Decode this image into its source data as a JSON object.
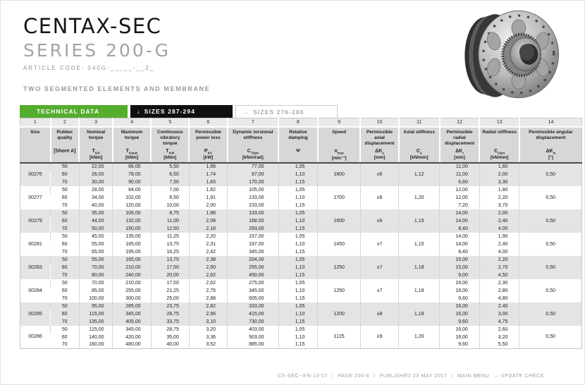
{
  "header": {
    "title": "CENTAX-SEC",
    "series": "SERIES 200-G",
    "article_code": "ARTICLE CODE: 040G-_____-__2_",
    "section_heading": "TWO SEGMENTED ELEMENTS AND MEMBRANE"
  },
  "tabs": {
    "technical": {
      "label": "TECHNICAL DATA",
      "icon": ""
    },
    "sizes_other": {
      "label": "SIZES 287-294",
      "icon": "↓"
    },
    "sizes_current": {
      "label": "SIZES 276-286",
      "icon": "→"
    }
  },
  "colors": {
    "accent_green": "#55ad2e",
    "tab_black": "#101010"
  },
  "table": {
    "columns": [
      {
        "num": "1",
        "label": "Size",
        "sym": "",
        "sub": "",
        "unit": ""
      },
      {
        "num": "2",
        "label": "Rubber quality",
        "sym": "[Shore A]",
        "sub": "",
        "unit": ""
      },
      {
        "num": "3",
        "label": "Nominal torque",
        "sym": "T",
        "sub": "KN",
        "unit": "[kNm]"
      },
      {
        "num": "4",
        "label": "Maximum torque",
        "sym": "T",
        "sub": "Kmax",
        "unit": "[kNm]"
      },
      {
        "num": "5",
        "label": "Continuous vibratory torque",
        "sym": "T",
        "sub": "KW",
        "unit": "[kNm]"
      },
      {
        "num": "6",
        "label": "Permissible power loss",
        "sym": "P",
        "sub": "KV",
        "unit": "[kW]"
      },
      {
        "num": "7",
        "label": "Dynamic torsional stiffness",
        "sym": "C",
        "sub": "Tdyn",
        "unit": "[kNm/rad]"
      },
      {
        "num": "8",
        "label": "Relative damping",
        "sym": "Ψ",
        "sub": "",
        "unit": ""
      },
      {
        "num": "9",
        "label": "Speed",
        "sym": "n",
        "sub": "max",
        "unit": "[min⁻¹]"
      },
      {
        "num": "10",
        "label": "Permissible axial displacement",
        "sym": "ΔK",
        "sub": "a",
        "unit": "[mm]"
      },
      {
        "num": "11",
        "label": "Axial stiffness",
        "sym": "C",
        "sub": "a",
        "unit": "[kN/mm]"
      },
      {
        "num": "12",
        "label": "Permissible radial displacement",
        "sym": "ΔK",
        "sub": "r",
        "unit": "[mm]"
      },
      {
        "num": "13",
        "label": "Radial stiffness",
        "sym": "C",
        "sub": "rdyn",
        "unit": "[kN/mm]"
      },
      {
        "num": "14",
        "label": "Permissible angular displacement",
        "sym": "ΔK",
        "sub": "w",
        "unit": "[°]"
      }
    ],
    "groups": [
      {
        "size": "00276",
        "shaded": true,
        "speed": "1800",
        "dka": "±6",
        "ca": "1,12",
        "dkw": "0,50",
        "rows": [
          {
            "shore": "50",
            "tkn": "22,00",
            "tkmax": "66,00",
            "tkw": "5,50",
            "pkv": "1,66",
            "ctdyn": "77,00",
            "psi": "1,05",
            "dkr": "11,00",
            "crdyn": "1,60"
          },
          {
            "shore": "60",
            "tkn": "26,00",
            "tkmax": "78,00",
            "tkw": "6,50",
            "pkv": "1,74",
            "ctdyn": "97,00",
            "psi": "1,10",
            "dkr": "11,00",
            "crdyn": "2,00"
          },
          {
            "shore": "70",
            "tkn": "30,00",
            "tkmax": "90,00",
            "tkw": "7,50",
            "pkv": "1,83",
            "ctdyn": "170,00",
            "psi": "1,15",
            "dkr": "6,60",
            "crdyn": "3,30"
          }
        ]
      },
      {
        "size": "00277",
        "shaded": false,
        "speed": "1700",
        "dka": "±6",
        "ca": "1,20",
        "dkw": "0,50",
        "rows": [
          {
            "shore": "50",
            "tkn": "28,00",
            "tkmax": "84,00",
            "tkw": "7,00",
            "pkv": "1,82",
            "ctdyn": "105,00",
            "psi": "1,05",
            "dkr": "12,00",
            "crdyn": "1,80"
          },
          {
            "shore": "60",
            "tkn": "34,00",
            "tkmax": "102,00",
            "tkw": "8,50",
            "pkv": "1,91",
            "ctdyn": "133,00",
            "psi": "1,10",
            "dkr": "12,00",
            "crdyn": "2,20"
          },
          {
            "shore": "70",
            "tkn": "40,00",
            "tkmax": "120,00",
            "tkw": "10,00",
            "pkv": "2,00",
            "ctdyn": "233,00",
            "psi": "1,15",
            "dkr": "7,20",
            "crdyn": "3,70"
          }
        ]
      },
      {
        "size": "00279",
        "shaded": true,
        "speed": "1600",
        "dka": "±6",
        "ca": "1,15",
        "dkw": "0,50",
        "rows": [
          {
            "shore": "50",
            "tkn": "35,00",
            "tkmax": "105,00",
            "tkw": "8,75",
            "pkv": "1,98",
            "ctdyn": "133,00",
            "psi": "1,05",
            "dkr": "14,00",
            "crdyn": "2,00"
          },
          {
            "shore": "60",
            "tkn": "44,00",
            "tkmax": "132,00",
            "tkw": "11,00",
            "pkv": "2,08",
            "ctdyn": "168,00",
            "psi": "1,10",
            "dkr": "14,00",
            "crdyn": "2,40"
          },
          {
            "shore": "70",
            "tkn": "50,00",
            "tkmax": "150,00",
            "tkw": "12,50",
            "pkv": "2,18",
            "ctdyn": "293,00",
            "psi": "1,15",
            "dkr": "8,40",
            "crdyn": "4,00"
          }
        ]
      },
      {
        "size": "00281",
        "shaded": false,
        "speed": "1450",
        "dka": "±7",
        "ca": "1,15",
        "dkw": "0,50",
        "rows": [
          {
            "shore": "50",
            "tkn": "45,00",
            "tkmax": "135,00",
            "tkw": "11,25",
            "pkv": "2,20",
            "ctdyn": "157,00",
            "psi": "1,05",
            "dkr": "14,00",
            "crdyn": "1,90"
          },
          {
            "shore": "60",
            "tkn": "55,00",
            "tkmax": "165,00",
            "tkw": "13,75",
            "pkv": "2,31",
            "ctdyn": "197,00",
            "psi": "1,10",
            "dkr": "14,00",
            "crdyn": "2,40"
          },
          {
            "shore": "70",
            "tkn": "65,00",
            "tkmax": "195,00",
            "tkw": "16,25",
            "pkv": "2,42",
            "ctdyn": "345,00",
            "psi": "1,15",
            "dkr": "8,40",
            "crdyn": "4,00"
          }
        ]
      },
      {
        "size": "00283",
        "shaded": true,
        "speed": "1250",
        "dka": "±7",
        "ca": "1,18",
        "dkw": "0,50",
        "rows": [
          {
            "shore": "50",
            "tkn": "55,00",
            "tkmax": "165,00",
            "tkw": "13,75",
            "pkv": "2,38",
            "ctdyn": "204,00",
            "psi": "1,05",
            "dkr": "15,00",
            "crdyn": "2,20"
          },
          {
            "shore": "60",
            "tkn": "70,00",
            "tkmax": "210,00",
            "tkw": "17,50",
            "pkv": "2,50",
            "ctdyn": "255,00",
            "psi": "1,10",
            "dkr": "15,00",
            "crdyn": "2,70"
          },
          {
            "shore": "70",
            "tkn": "80,00",
            "tkmax": "240,00",
            "tkw": "20,00",
            "pkv": "2,62",
            "ctdyn": "450,00",
            "psi": "1,15",
            "dkr": "9,00",
            "crdyn": "4,50"
          }
        ]
      },
      {
        "size": "00284",
        "shaded": false,
        "speed": "1250",
        "dka": "±7",
        "ca": "1,18",
        "dkw": "0,50",
        "rows": [
          {
            "shore": "50",
            "tkn": "70,00",
            "tkmax": "210,00",
            "tkw": "17,50",
            "pkv": "2,62",
            "ctdyn": "275,00",
            "psi": "1,05",
            "dkr": "16,00",
            "crdyn": "2,30"
          },
          {
            "shore": "60",
            "tkn": "85,00",
            "tkmax": "255,00",
            "tkw": "21,25",
            "pkv": "2,75",
            "ctdyn": "345,00",
            "psi": "1,10",
            "dkr": "16,00",
            "crdyn": "2,80"
          },
          {
            "shore": "70",
            "tkn": "100,00",
            "tkmax": "300,00",
            "tkw": "25,00",
            "pkv": "2,88",
            "ctdyn": "605,00",
            "psi": "1,15",
            "dkr": "9,60",
            "crdyn": "4,80"
          }
        ]
      },
      {
        "size": "00285",
        "shaded": true,
        "speed": "1200",
        "dka": "±8",
        "ca": "1,19",
        "dkw": "0,50",
        "rows": [
          {
            "shore": "50",
            "tkn": "95,00",
            "tkmax": "285,00",
            "tkw": "23,75",
            "pkv": "2,82",
            "ctdyn": "333,00",
            "psi": "1,05",
            "dkr": "16,00",
            "crdyn": "2,40"
          },
          {
            "shore": "60",
            "tkn": "115,00",
            "tkmax": "345,00",
            "tkw": "28,75",
            "pkv": "2,96",
            "ctdyn": "415,00",
            "psi": "1,10",
            "dkr": "16,00",
            "crdyn": "3,00"
          },
          {
            "shore": "70",
            "tkn": "135,00",
            "tkmax": "405,00",
            "tkw": "33,75",
            "pkv": "3,10",
            "ctdyn": "730,00",
            "psi": "1,15",
            "dkr": "9,60",
            "crdyn": "4,75"
          }
        ]
      },
      {
        "size": "00286",
        "shaded": false,
        "speed": "1125",
        "dka": "±9",
        "ca": "1,20",
        "dkw": "0,50",
        "rows": [
          {
            "shore": "50",
            "tkn": "115,00",
            "tkmax": "345,00",
            "tkw": "28,75",
            "pkv": "3,20",
            "ctdyn": "403,00",
            "psi": "1,05",
            "dkr": "16,00",
            "crdyn": "2,60"
          },
          {
            "shore": "60",
            "tkn": "140,00",
            "tkmax": "420,00",
            "tkw": "35,00",
            "pkv": "3,36",
            "ctdyn": "503,00",
            "psi": "1,10",
            "dkr": "16,00",
            "crdyn": "3,20"
          },
          {
            "shore": "70",
            "tkn": "160,00",
            "tkmax": "480,00",
            "tkw": "40,00",
            "pkv": "3,52",
            "ctdyn": "885,00",
            "psi": "1,15",
            "dkr": "9,60",
            "crdyn": "5,50"
          }
        ]
      }
    ]
  },
  "footer": {
    "sep": "|",
    "doc_code": "CX-SEC--EN-13-17",
    "page": "PAGE 200-4",
    "published": "PUBLISHED 23 MAY 2017",
    "main_menu": "MAIN MENU",
    "update_check": "→ UPDATE CHECK"
  }
}
